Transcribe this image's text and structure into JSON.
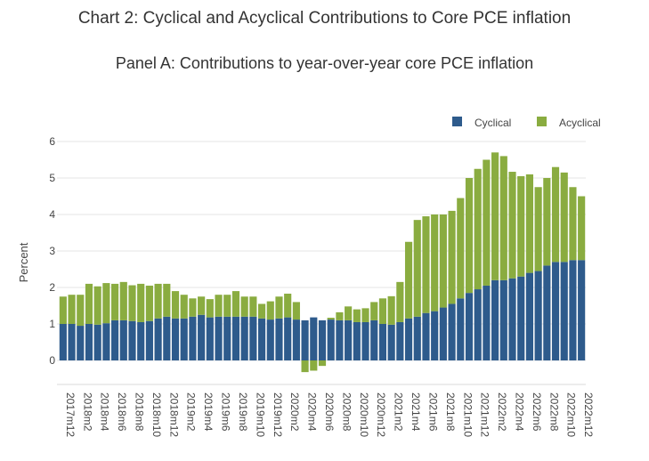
{
  "title": "Chart 2: Cyclical and Acyclical Contributions to Core PCE inflation",
  "subtitle": "Panel A: Contributions to year-over-year core PCE inflation",
  "chart_data": {
    "type": "bar",
    "stacked": true,
    "ylabel": "Percent",
    "xlabel": "",
    "ylim": [
      -0.6,
      6
    ],
    "yticks": [
      0,
      1,
      2,
      3,
      4,
      5,
      6
    ],
    "legend_position": "top-right",
    "tick_every": 2,
    "categories": [
      "2017m12",
      "2018m1",
      "2018m2",
      "2018m3",
      "2018m4",
      "2018m5",
      "2018m6",
      "2018m7",
      "2018m8",
      "2018m9",
      "2018m10",
      "2018m11",
      "2018m12",
      "2019m1",
      "2019m2",
      "2019m3",
      "2019m4",
      "2019m5",
      "2019m6",
      "2019m7",
      "2019m8",
      "2019m9",
      "2019m10",
      "2019m11",
      "2019m12",
      "2020m1",
      "2020m2",
      "2020m3",
      "2020m4",
      "2020m5",
      "2020m6",
      "2020m7",
      "2020m8",
      "2020m9",
      "2020m10",
      "2020m11",
      "2020m12",
      "2021m1",
      "2021m2",
      "2021m3",
      "2021m4",
      "2021m5",
      "2021m6",
      "2021m7",
      "2021m8",
      "2021m9",
      "2021m10",
      "2021m11",
      "2021m12",
      "2022m1",
      "2022m2",
      "2022m3",
      "2022m4",
      "2022m5",
      "2022m6",
      "2022m7",
      "2022m8",
      "2022m9",
      "2022m10",
      "2022m11",
      "2022m12"
    ],
    "series": [
      {
        "name": "Cyclical",
        "color": "#2e5b8c",
        "values": [
          1.0,
          1.0,
          0.95,
          1.0,
          0.98,
          1.02,
          1.1,
          1.1,
          1.08,
          1.05,
          1.08,
          1.15,
          1.2,
          1.15,
          1.15,
          1.2,
          1.25,
          1.18,
          1.2,
          1.2,
          1.2,
          1.2,
          1.2,
          1.15,
          1.12,
          1.15,
          1.18,
          1.12,
          1.1,
          1.18,
          1.1,
          1.12,
          1.1,
          1.1,
          1.05,
          1.05,
          1.1,
          1.0,
          0.98,
          1.05,
          1.15,
          1.2,
          1.3,
          1.35,
          1.45,
          1.55,
          1.7,
          1.85,
          1.95,
          2.05,
          2.2,
          2.2,
          2.25,
          2.3,
          2.4,
          2.45,
          2.6,
          2.7,
          2.7,
          2.75,
          2.75
        ]
      },
      {
        "name": "Acyclical",
        "color": "#8aac40",
        "values": [
          0.75,
          0.8,
          0.85,
          1.1,
          1.05,
          1.1,
          1.0,
          1.05,
          0.98,
          1.05,
          0.97,
          0.95,
          0.9,
          0.75,
          0.65,
          0.5,
          0.5,
          0.5,
          0.6,
          0.6,
          0.7,
          0.55,
          0.55,
          0.4,
          0.5,
          0.6,
          0.65,
          0.48,
          -0.32,
          -0.28,
          -0.15,
          0.05,
          0.22,
          0.38,
          0.35,
          0.38,
          0.5,
          0.7,
          0.78,
          1.1,
          2.1,
          2.65,
          2.65,
          2.65,
          2.55,
          2.55,
          2.75,
          3.15,
          3.3,
          3.45,
          3.5,
          3.4,
          2.92,
          2.75,
          2.7,
          2.3,
          2.4,
          2.6,
          2.45,
          2.0,
          1.75
        ]
      }
    ]
  }
}
